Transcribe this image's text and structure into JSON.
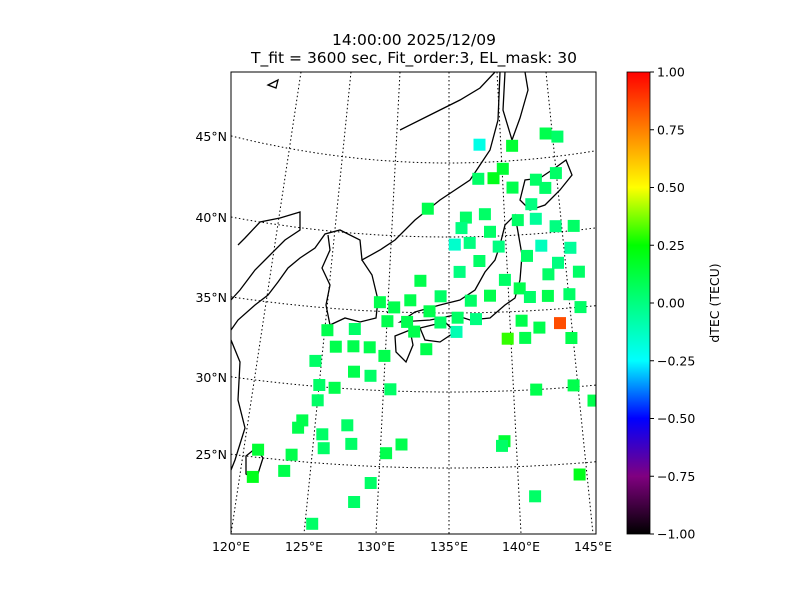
{
  "title": {
    "line1": "14:00:00 2025/12/09",
    "line2": "T_fit = 3600 sec, Fit_order:3, EL_mask: 30"
  },
  "map": {
    "lon_labels": [
      {
        "lon": 120,
        "label": "120°E"
      },
      {
        "lon": 125,
        "label": "125°E"
      },
      {
        "lon": 130,
        "label": "130°E"
      },
      {
        "lon": 135,
        "label": "135°E"
      },
      {
        "lon": 140,
        "label": "140°E"
      },
      {
        "lon": 145,
        "label": "145°E"
      }
    ],
    "lat_labels": [
      {
        "lat": 45,
        "label": "45°N"
      },
      {
        "lat": 40,
        "label": "40°N"
      },
      {
        "lat": 35,
        "label": "35°N"
      },
      {
        "lat": 30,
        "label": "30°N"
      },
      {
        "lat": 25,
        "label": "25°N"
      }
    ],
    "extent": {
      "lon": [
        120,
        145
      ],
      "lat": [
        20,
        48
      ]
    },
    "points": [
      {
        "lon": 144.0,
        "lat": 34.1,
        "v": 0.85
      },
      {
        "lon": 137.9,
        "lat": 46.2,
        "v": -0.2
      },
      {
        "lon": 144.4,
        "lat": 24.25,
        "v": 0.2
      },
      {
        "lon": 141.1,
        "lat": 23.0,
        "v": 0.05
      },
      {
        "lon": 129.4,
        "lat": 23.9,
        "v": 0.05
      },
      {
        "lon": 128.3,
        "lat": 22.6,
        "v": 0.05
      },
      {
        "lon": 125.5,
        "lat": 21.0,
        "v": 0.05
      },
      {
        "lon": 120.9,
        "lat": 23.7,
        "v": 0.2
      },
      {
        "lon": 121.0,
        "lat": 25.5,
        "v": 0.15
      },
      {
        "lon": 123.1,
        "lat": 24.3,
        "v": 0.1
      },
      {
        "lon": 123.5,
        "lat": 25.4,
        "v": 0.1
      },
      {
        "lon": 123.75,
        "lat": 27.2,
        "v": 0.1
      },
      {
        "lon": 124.0,
        "lat": 27.7,
        "v": 0.1
      },
      {
        "lon": 125.0,
        "lat": 29.1,
        "v": 0.05
      },
      {
        "lon": 125.0,
        "lat": 30.1,
        "v": 0.05
      },
      {
        "lon": 124.5,
        "lat": 31.6,
        "v": 0.05
      },
      {
        "lon": 125.2,
        "lat": 33.6,
        "v": 0.1
      },
      {
        "lon": 126.0,
        "lat": 32.6,
        "v": 0.1
      },
      {
        "lon": 125.6,
        "lat": 26.9,
        "v": 0.05
      },
      {
        "lon": 125.8,
        "lat": 26.0,
        "v": 0.05
      },
      {
        "lon": 127.4,
        "lat": 27.6,
        "v": 0.05
      },
      {
        "lon": 126.2,
        "lat": 30.0,
        "v": 0.1
      },
      {
        "lon": 127.6,
        "lat": 31.1,
        "v": 0.1
      },
      {
        "lon": 127.4,
        "lat": 32.7,
        "v": 0.1
      },
      {
        "lon": 127.4,
        "lat": 33.8,
        "v": 0.05
      },
      {
        "lon": 128.7,
        "lat": 32.7,
        "v": 0.1
      },
      {
        "lon": 128.9,
        "lat": 30.9,
        "v": 0.05
      },
      {
        "lon": 129.9,
        "lat": 32.2,
        "v": 0.1
      },
      {
        "lon": 130.5,
        "lat": 30.1,
        "v": 0.05
      },
      {
        "lon": 127.8,
        "lat": 26.4,
        "v": 0.05
      },
      {
        "lon": 130.4,
        "lat": 25.9,
        "v": 0.1
      },
      {
        "lon": 131.5,
        "lat": 26.5,
        "v": 0.1
      },
      {
        "lon": 130.0,
        "lat": 34.4,
        "v": 0.1
      },
      {
        "lon": 131.6,
        "lat": 34.4,
        "v": 0.1
      },
      {
        "lon": 133.4,
        "lat": 35.1,
        "v": 0.1
      },
      {
        "lon": 135.7,
        "lat": 34.7,
        "v": 0.05
      },
      {
        "lon": 136.8,
        "lat": 35.8,
        "v": 0.05
      },
      {
        "lon": 138.4,
        "lat": 36.1,
        "v": 0.1
      },
      {
        "lon": 139.7,
        "lat": 37.1,
        "v": 0.05
      },
      {
        "lon": 140.9,
        "lat": 36.5,
        "v": 0.1
      },
      {
        "lon": 141.7,
        "lat": 35.9,
        "v": 0.05
      },
      {
        "lon": 143.2,
        "lat": 35.9,
        "v": 0.1
      },
      {
        "lon": 145.0,
        "lat": 35.9,
        "v": 0.05
      },
      {
        "lon": 140.9,
        "lat": 34.4,
        "v": 0.1
      },
      {
        "lon": 141.1,
        "lat": 33.3,
        "v": 0.1
      },
      {
        "lon": 139.7,
        "lat": 33.3,
        "v": 0.3
      },
      {
        "lon": 142.3,
        "lat": 33.9,
        "v": 0.1
      },
      {
        "lon": 135.6,
        "lat": 33.8,
        "v": -0.1
      },
      {
        "lon": 137.2,
        "lat": 34.6,
        "v": 0.0
      },
      {
        "lon": 134.3,
        "lat": 36.1,
        "v": 0.05
      },
      {
        "lon": 132.6,
        "lat": 37.1,
        "v": 0.1
      },
      {
        "lon": 131.8,
        "lat": 35.8,
        "v": 0.1
      },
      {
        "lon": 130.5,
        "lat": 35.3,
        "v": 0.1
      },
      {
        "lon": 129.3,
        "lat": 35.6,
        "v": 0.1
      },
      {
        "lon": 135.9,
        "lat": 37.7,
        "v": 0.0
      },
      {
        "lon": 137.6,
        "lat": 38.4,
        "v": 0.05
      },
      {
        "lon": 139.3,
        "lat": 39.3,
        "v": 0.0
      },
      {
        "lon": 136.8,
        "lat": 39.6,
        "v": 0.0
      },
      {
        "lon": 138.6,
        "lat": 40.3,
        "v": 0.05
      },
      {
        "lon": 136.5,
        "lat": 41.3,
        "v": 0.05
      },
      {
        "lon": 138.2,
        "lat": 41.5,
        "v": 0.05
      },
      {
        "lon": 135.5,
        "lat": 39.5,
        "v": -0.15
      },
      {
        "lon": 136.1,
        "lat": 40.6,
        "v": 0.0
      },
      {
        "lon": 133.1,
        "lat": 41.9,
        "v": 0.1
      },
      {
        "lon": 141.1,
        "lat": 41.0,
        "v": 0.05
      },
      {
        "lon": 142.4,
        "lat": 42.0,
        "v": 0.0
      },
      {
        "lon": 143.8,
        "lat": 43.0,
        "v": 0.05
      },
      {
        "lon": 144.9,
        "lat": 43.9,
        "v": 0.05
      },
      {
        "lon": 143.0,
        "lat": 43.6,
        "v": 0.05
      },
      {
        "lon": 140.8,
        "lat": 43.2,
        "v": 0.1
      },
      {
        "lon": 140.0,
        "lat": 44.5,
        "v": 0.15
      },
      {
        "lon": 141.0,
        "lat": 46.0,
        "v": 0.15
      },
      {
        "lon": 144.3,
        "lat": 46.6,
        "v": 0.1
      },
      {
        "lon": 145.4,
        "lat": 46.3,
        "v": 0.05
      },
      {
        "lon": 137.7,
        "lat": 43.9,
        "v": 0.05
      },
      {
        "lon": 139.1,
        "lat": 43.9,
        "v": 0.2
      },
      {
        "lon": 142.7,
        "lat": 41.0,
        "v": -0.05
      },
      {
        "lon": 144.4,
        "lat": 40.4,
        "v": 0.0
      },
      {
        "lon": 145.5,
        "lat": 38.9,
        "v": -0.05
      },
      {
        "lon": 143.0,
        "lat": 39.2,
        "v": -0.12
      },
      {
        "lon": 144.3,
        "lat": 38.0,
        "v": 0.0
      },
      {
        "lon": 141.7,
        "lat": 38.6,
        "v": 0.05
      },
      {
        "lon": 143.4,
        "lat": 37.3,
        "v": 0.05
      },
      {
        "lon": 146.0,
        "lat": 40.3,
        "v": 0.05
      },
      {
        "lon": 146.0,
        "lat": 37.3,
        "v": 0.05
      },
      {
        "lon": 144.6,
        "lat": 30.1,
        "v": 0.1
      },
      {
        "lon": 141.7,
        "lat": 30.0,
        "v": 0.1
      },
      {
        "lon": 146.0,
        "lat": 29.0,
        "v": 0.1
      },
      {
        "lon": 139.1,
        "lat": 26.7,
        "v": 0.15
      },
      {
        "lon": 138.9,
        "lat": 26.4,
        "v": 0.05
      },
      {
        "lon": 144.8,
        "lat": 33.1,
        "v": 0.1
      },
      {
        "lon": 145.8,
        "lat": 35.0,
        "v": 0.05
      },
      {
        "lon": 132.2,
        "lat": 33.8,
        "v": 0.1
      },
      {
        "lon": 134.3,
        "lat": 34.4,
        "v": 0.05
      },
      {
        "lon": 133.2,
        "lat": 32.7,
        "v": 0.1
      }
    ]
  },
  "colorbar": {
    "label": "dTEC (TECU)",
    "ticks": [
      "1.00",
      "0.75",
      "0.50",
      "0.25",
      "0.00",
      "−0.25",
      "−0.50",
      "−0.75",
      "−1.00"
    ],
    "range": [
      -1,
      1
    ],
    "stops": [
      {
        "v": 1.0,
        "color": "#ff0000"
      },
      {
        "v": 0.75,
        "color": "#ff8000"
      },
      {
        "v": 0.5,
        "color": "#ffff00"
      },
      {
        "v": 0.25,
        "color": "#00ff00"
      },
      {
        "v": 0.0,
        "color": "#00ff80"
      },
      {
        "v": -0.25,
        "color": "#00ffff"
      },
      {
        "v": -0.5,
        "color": "#0000ff"
      },
      {
        "v": -0.75,
        "color": "#800080"
      },
      {
        "v": -1.0,
        "color": "#000000"
      }
    ]
  }
}
